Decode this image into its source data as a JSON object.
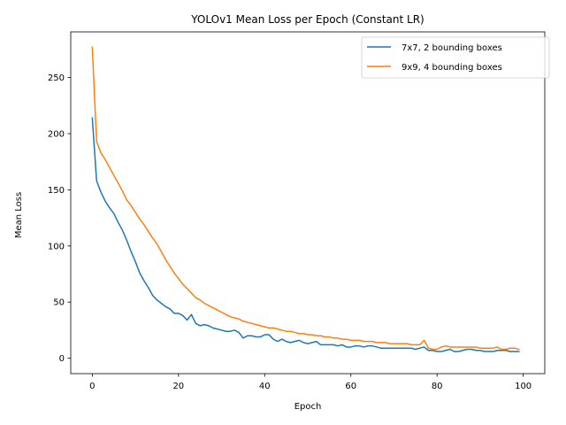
{
  "chart_data": {
    "type": "line",
    "title": "YOLOv1 Mean Loss per Epoch (Constant LR)",
    "xlabel": "Epoch",
    "ylabel": "Mean Loss",
    "xlim": [
      -5,
      105
    ],
    "ylim": [
      -13.7,
      290.7
    ],
    "xticks": [
      0,
      20,
      40,
      60,
      80,
      100
    ],
    "yticks": [
      0,
      50,
      100,
      150,
      200,
      250
    ],
    "grid": false,
    "legend_position": "top-right",
    "series": [
      {
        "name": "7x7, 2 bounding boxes",
        "color": "#1f77b4",
        "x": [
          0,
          1,
          2,
          3,
          4,
          5,
          6,
          7,
          8,
          9,
          10,
          11,
          12,
          13,
          14,
          15,
          16,
          17,
          18,
          19,
          20,
          21,
          22,
          23,
          24,
          25,
          26,
          27,
          28,
          29,
          30,
          31,
          32,
          33,
          34,
          35,
          36,
          37,
          38,
          39,
          40,
          41,
          42,
          43,
          44,
          45,
          46,
          47,
          48,
          49,
          50,
          51,
          52,
          53,
          54,
          55,
          56,
          57,
          58,
          59,
          60,
          61,
          62,
          63,
          64,
          65,
          66,
          67,
          68,
          69,
          70,
          71,
          72,
          73,
          74,
          75,
          76,
          77,
          78,
          79,
          80,
          81,
          82,
          83,
          84,
          85,
          86,
          87,
          88,
          89,
          90,
          91,
          92,
          93,
          94,
          95,
          96,
          97,
          98,
          99
        ],
        "y": [
          214,
          158,
          148,
          140,
          134,
          129,
          121,
          114,
          105,
          95,
          86,
          76,
          69,
          63,
          56,
          52,
          49,
          46,
          44,
          40,
          40,
          38,
          34,
          39,
          31,
          29,
          30,
          29,
          27,
          26,
          25,
          24,
          24,
          25,
          23,
          18,
          20,
          20,
          19,
          19,
          21,
          21,
          17,
          15,
          17,
          15,
          14,
          15,
          16,
          14,
          13,
          14,
          15,
          12,
          12,
          12,
          12,
          11,
          12,
          10,
          10,
          11,
          11,
          10,
          11,
          11,
          10,
          9,
          9,
          9,
          9,
          9,
          9,
          9,
          9,
          8,
          9,
          10,
          7,
          7,
          6,
          6,
          7,
          8,
          6,
          6,
          7,
          8,
          8,
          7,
          7,
          6,
          6,
          6,
          7,
          7,
          7,
          6,
          6,
          6
        ]
      },
      {
        "name": "9x9, 4 bounding boxes",
        "color": "#ff7f0e",
        "x": [
          0,
          1,
          2,
          3,
          4,
          5,
          6,
          7,
          8,
          9,
          10,
          11,
          12,
          13,
          14,
          15,
          16,
          17,
          18,
          19,
          20,
          21,
          22,
          23,
          24,
          25,
          26,
          27,
          28,
          29,
          30,
          31,
          32,
          33,
          34,
          35,
          36,
          37,
          38,
          39,
          40,
          41,
          42,
          43,
          44,
          45,
          46,
          47,
          48,
          49,
          50,
          51,
          52,
          53,
          54,
          55,
          56,
          57,
          58,
          59,
          60,
          61,
          62,
          63,
          64,
          65,
          66,
          67,
          68,
          69,
          70,
          71,
          72,
          73,
          74,
          75,
          76,
          77,
          78,
          79,
          80,
          81,
          82,
          83,
          84,
          85,
          86,
          87,
          88,
          89,
          90,
          91,
          92,
          93,
          94,
          95,
          96,
          97,
          98,
          99
        ],
        "y": [
          277,
          193,
          183,
          177,
          170,
          163,
          156,
          149,
          141,
          136,
          130,
          124,
          119,
          113,
          107,
          102,
          95,
          88,
          82,
          76,
          71,
          66,
          62,
          58,
          54,
          52,
          49,
          47,
          45,
          43,
          41,
          39,
          37,
          36,
          35,
          33,
          32,
          31,
          30,
          29,
          28,
          27,
          27,
          26,
          25,
          24,
          24,
          23,
          22,
          22,
          21,
          21,
          20,
          20,
          19,
          19,
          18,
          18,
          17,
          17,
          16,
          16,
          16,
          15,
          15,
          15,
          14,
          14,
          14,
          13,
          13,
          13,
          13,
          13,
          12,
          12,
          12,
          16,
          9,
          8,
          8,
          10,
          11,
          10,
          10,
          10,
          10,
          10,
          10,
          10,
          9,
          9,
          9,
          9,
          10,
          8,
          8,
          9,
          9,
          8
        ]
      }
    ]
  }
}
